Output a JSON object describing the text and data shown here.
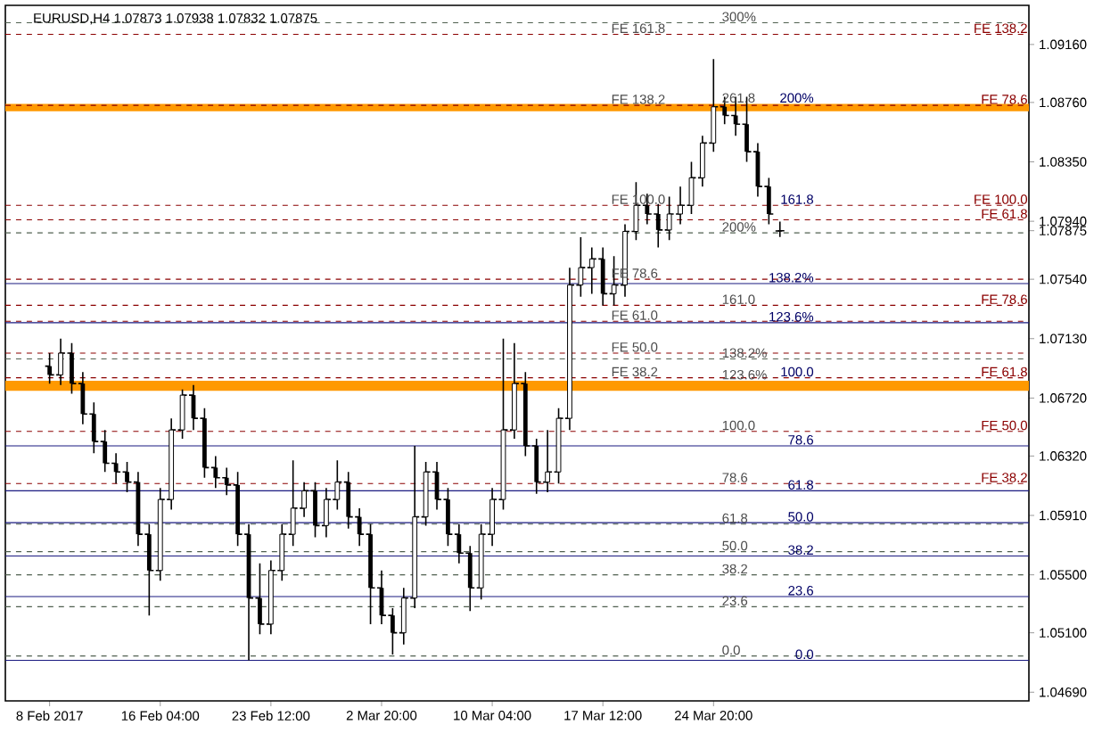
{
  "chart_data": {
    "type": "candlestick",
    "title": "EURUSD,H4  1.07873 1.07938 1.07832 1.07875",
    "color": "#000000",
    "categories": [
      "8 Feb 2017",
      null,
      null,
      null,
      null,
      null,
      null,
      null,
      null,
      null,
      "16 Feb 04:00",
      null,
      null,
      null,
      null,
      null,
      null,
      null,
      null,
      null,
      "23 Feb 12:00",
      null,
      null,
      null,
      null,
      null,
      null,
      null,
      null,
      null,
      "2 Mar 20:00",
      null,
      null,
      null,
      null,
      null,
      null,
      null,
      null,
      null,
      "10 Mar 04:00",
      null,
      null,
      null,
      null,
      null,
      null,
      null,
      null,
      null,
      "17 Mar 12:00",
      null,
      null,
      null,
      null,
      null,
      null,
      null,
      null,
      null,
      "24 Mar 20:00",
      null,
      null,
      null,
      null,
      null,
      null,
      null,
      null,
      null,
      null,
      null,
      null,
      null,
      null,
      null,
      null,
      null,
      null,
      null,
      null,
      null,
      null,
      null,
      null,
      null,
      null,
      null,
      null
    ],
    "ohlc": [
      [
        1.0694,
        1.0703,
        1.0682,
        1.0688
      ],
      [
        1.0688,
        1.0713,
        1.0681,
        1.0703
      ],
      [
        1.0703,
        1.071,
        1.0675,
        1.0682
      ],
      [
        1.0682,
        1.069,
        1.0654,
        1.0661
      ],
      [
        1.0661,
        1.0669,
        1.0634,
        1.0642
      ],
      [
        1.0642,
        1.065,
        1.0621,
        1.0627
      ],
      [
        1.0627,
        1.0634,
        1.0613,
        1.0621
      ],
      [
        1.0621,
        1.0628,
        1.0607,
        1.0614
      ],
      [
        1.0614,
        1.0621,
        1.057,
        1.0578
      ],
      [
        1.0578,
        1.0585,
        1.0522,
        1.0553
      ],
      [
        1.0553,
        1.061,
        1.0546,
        1.0602
      ],
      [
        1.0602,
        1.0658,
        1.0595,
        1.065
      ],
      [
        1.065,
        1.0678,
        1.0644,
        1.0674
      ],
      [
        1.0674,
        1.0681,
        1.065,
        1.0658
      ],
      [
        1.0658,
        1.0665,
        1.0617,
        1.0624
      ],
      [
        1.0624,
        1.0632,
        1.061,
        1.0617
      ],
      [
        1.0617,
        1.0624,
        1.0605,
        1.0612
      ],
      [
        1.0612,
        1.0621,
        1.057,
        1.0578
      ],
      [
        1.0578,
        1.0585,
        1.0491,
        1.0534
      ],
      [
        1.0534,
        1.0558,
        1.0509,
        1.0516
      ],
      [
        1.0516,
        1.056,
        1.0509,
        1.0553
      ],
      [
        1.0553,
        1.0585,
        1.0546,
        1.0578
      ],
      [
        1.0578,
        1.0629,
        1.057,
        1.0596
      ],
      [
        1.0596,
        1.0614,
        1.059,
        1.0608
      ],
      [
        1.0608,
        1.0614,
        1.0576,
        1.0584
      ],
      [
        1.0584,
        1.061,
        1.0576,
        1.0602
      ],
      [
        1.0602,
        1.0629,
        1.0595,
        1.0614
      ],
      [
        1.0614,
        1.0621,
        1.0582,
        1.059
      ],
      [
        1.059,
        1.0596,
        1.057,
        1.0578
      ],
      [
        1.0578,
        1.0585,
        1.0516,
        1.0541
      ],
      [
        1.0541,
        1.0553,
        1.0516,
        1.0522
      ],
      [
        1.0522,
        1.0527,
        1.0495,
        1.051
      ],
      [
        1.051,
        1.0541,
        1.0502,
        1.0534
      ],
      [
        1.0534,
        1.0639,
        1.0527,
        1.059
      ],
      [
        1.059,
        1.0628,
        1.0584,
        1.0621
      ],
      [
        1.0621,
        1.0628,
        1.0595,
        1.0602
      ],
      [
        1.0602,
        1.061,
        1.057,
        1.0578
      ],
      [
        1.0578,
        1.0585,
        1.0558,
        1.0565
      ],
      [
        1.0565,
        1.057,
        1.0525,
        1.0541
      ],
      [
        1.0541,
        1.0585,
        1.0533,
        1.0578
      ],
      [
        1.0578,
        1.061,
        1.057,
        1.0602
      ],
      [
        1.0602,
        1.0713,
        1.0595,
        1.065
      ],
      [
        1.065,
        1.071,
        1.0644,
        1.0682
      ],
      [
        1.0682,
        1.069,
        1.0632,
        1.0639
      ],
      [
        1.0639,
        1.0644,
        1.0606,
        1.0614
      ],
      [
        1.0614,
        1.065,
        1.0607,
        1.0621
      ],
      [
        1.0621,
        1.0665,
        1.0613,
        1.0658
      ],
      [
        1.0658,
        1.0762,
        1.065,
        1.075
      ],
      [
        1.075,
        1.0783,
        1.0742,
        1.0762
      ],
      [
        1.0762,
        1.0776,
        1.0744,
        1.0768
      ],
      [
        1.0768,
        1.0776,
        1.0736,
        1.0744
      ],
      [
        1.0744,
        1.077,
        1.0736,
        1.075
      ],
      [
        1.075,
        1.0792,
        1.0742,
        1.0787
      ],
      [
        1.0787,
        1.0821,
        1.0781,
        1.0805
      ],
      [
        1.0805,
        1.0813,
        1.0792,
        1.0799
      ],
      [
        1.0799,
        1.0806,
        1.0776,
        1.0788
      ],
      [
        1.0788,
        1.0811,
        1.0781,
        1.0799
      ],
      [
        1.0799,
        1.0818,
        1.0792,
        1.0805
      ],
      [
        1.0805,
        1.0835,
        1.0799,
        1.0824
      ],
      [
        1.0824,
        1.0853,
        1.0818,
        1.0848
      ],
      [
        1.0848,
        1.0906,
        1.0842,
        1.0873
      ],
      [
        1.0873,
        1.088,
        1.0861,
        1.0867
      ],
      [
        1.0867,
        1.088,
        1.0853,
        1.0861
      ],
      [
        1.0861,
        1.088,
        1.0835,
        1.0842
      ],
      [
        1.0842,
        1.0848,
        1.0811,
        1.0818
      ],
      [
        1.0818,
        1.0824,
        1.0792,
        1.0799
      ],
      [
        1.07873,
        1.07938,
        1.07832,
        1.07875
      ],
      null,
      null,
      null,
      null,
      null,
      null,
      null,
      null,
      null,
      null,
      null,
      null,
      null,
      null,
      null,
      null,
      null,
      null,
      null,
      null,
      null,
      null
    ],
    "ylim": [
      1.0463,
      1.0943
    ],
    "yticks": [
      {
        "value": 1.0469,
        "label": "1.04690"
      },
      {
        "value": 1.051,
        "label": "1.05100"
      },
      {
        "value": 1.055,
        "label": "1.05500"
      },
      {
        "value": 1.0591,
        "label": "1.05910"
      },
      {
        "value": 1.0632,
        "label": "1.06320"
      },
      {
        "value": 1.0672,
        "label": "1.06720"
      },
      {
        "value": 1.0713,
        "label": "1.07130"
      },
      {
        "value": 1.0754,
        "label": "1.07540"
      },
      {
        "value": 1.07875,
        "label": "1.07875"
      },
      {
        "value": 1.0794,
        "label": "1.07940"
      },
      {
        "value": 1.0835,
        "label": "1.08350"
      },
      {
        "value": 1.0876,
        "label": "1.08760"
      },
      {
        "value": 1.0916,
        "label": "1.09160"
      }
    ],
    "ref_lines": [
      {
        "axis": "y",
        "value": 1.0923,
        "label": "FE 138.2",
        "color": "#8b0000",
        "line_style": "dashed"
      },
      {
        "axis": "y",
        "value": 1.0874,
        "label": "FE 78.6",
        "color": "#8b0000",
        "line_style": "dashed"
      },
      {
        "axis": "y",
        "value": 1.0805,
        "label": "FE 100.0",
        "color": "#8b0000",
        "line_style": "dashed"
      },
      {
        "axis": "y",
        "value": 1.0795,
        "label": "FE 61.8",
        "color": "#8b0000",
        "line_style": "dashed"
      },
      {
        "axis": "y",
        "value": 1.0736,
        "label": "FE 78.6",
        "color": "#8b0000",
        "line_style": "dashed"
      },
      {
        "axis": "y",
        "value": 1.0686,
        "label": "FE 61.8",
        "color": "#8b0000",
        "line_style": "dashed"
      },
      {
        "axis": "y",
        "value": 1.0649,
        "label": "FE 50.0",
        "color": "#8b0000",
        "line_style": "dashed"
      },
      {
        "axis": "y",
        "value": 1.0613,
        "label": "FE 38.2",
        "color": "#8b0000",
        "line_style": "dashed"
      },
      {
        "axis": "y",
        "value": 1.0754,
        "color": "#8b0000",
        "line_style": "dashed"
      },
      {
        "axis": "y",
        "value": 1.0725,
        "color": "#8b0000",
        "line_style": "dashed"
      },
      {
        "axis": "y",
        "value": 1.0703,
        "color": "#8b0000",
        "line_style": "dashed"
      },
      {
        "axis": "y",
        "value": 1.0931,
        "color": "#506050",
        "line_style": "dashed"
      },
      {
        "axis": "y",
        "value": 1.0786,
        "color": "#506050",
        "line_style": "dashed"
      },
      {
        "axis": "y",
        "value": 1.0699,
        "color": "#506050",
        "line_style": "dashed"
      },
      {
        "axis": "y",
        "value": 1.0585,
        "color": "#506050",
        "line_style": "dashed"
      },
      {
        "axis": "y",
        "value": 1.0566,
        "color": "#506050",
        "line_style": "dashed"
      },
      {
        "axis": "y",
        "value": 1.055,
        "color": "#506050",
        "line_style": "dashed"
      },
      {
        "axis": "y",
        "value": 1.0528,
        "color": "#506050",
        "line_style": "dashed"
      },
      {
        "axis": "y",
        "value": 1.0494,
        "color": "#506050",
        "line_style": "dashed"
      },
      {
        "axis": "y",
        "value": 1.0751,
        "color": "#1a1a80",
        "line_style": "solid"
      },
      {
        "axis": "y",
        "value": 1.0724,
        "color": "#1a1a80",
        "line_style": "solid"
      },
      {
        "axis": "y",
        "value": 1.0639,
        "color": "#1a1a80",
        "line_style": "solid"
      },
      {
        "axis": "y",
        "value": 1.0608,
        "color": "#1a1a80",
        "line_style": "solid"
      },
      {
        "axis": "y",
        "value": 1.0586,
        "color": "#1a1a80",
        "line_style": "solid"
      },
      {
        "axis": "y",
        "value": 1.0563,
        "color": "#1a1a80",
        "line_style": "solid"
      },
      {
        "axis": "y",
        "value": 1.0535,
        "color": "#1a1a80",
        "line_style": "solid"
      },
      {
        "axis": "y",
        "value": 1.0491,
        "color": "#1a1a80",
        "line_style": "solid"
      }
    ],
    "bands": [
      {
        "axis": "y",
        "from": 1.087,
        "to": 1.0875,
        "color": "#ff9900"
      },
      {
        "axis": "y",
        "from": 1.0677,
        "to": 1.0684,
        "color": "#ff9900"
      }
    ],
    "annotations": [
      {
        "text": "FE 161.8",
        "x": "17 Mar 12:00",
        "y": 1.0923
      },
      {
        "text": "FE 138.2",
        "x": "17 Mar 12:00",
        "y": 1.0874
      },
      {
        "text": "FE 100.0",
        "x": "17 Mar 12:00",
        "y": 1.0805
      },
      {
        "text": "FE 78.6",
        "x": "17 Mar 12:00",
        "y": 1.0754
      },
      {
        "text": "FE 61.0",
        "x": "17 Mar 12:00",
        "y": 1.0725
      },
      {
        "text": "FE 50.0",
        "x": "17 Mar 12:00",
        "y": 1.0703
      },
      {
        "text": "FE 38.2",
        "x": "17 Mar 12:00",
        "y": 1.0686
      },
      {
        "text": "300%",
        "x": "24 Mar 20:00",
        "y": 1.0931
      },
      {
        "text": "261.8",
        "x": "24 Mar 20:00",
        "y": 1.0875
      },
      {
        "text": "200%",
        "x": "24 Mar 20:00",
        "y": 1.0786
      },
      {
        "text": "161.0",
        "x": "24 Mar 20:00",
        "y": 1.0736
      },
      {
        "text": "138.2%",
        "x": "24 Mar 20:00",
        "y": 1.0699
      },
      {
        "text": "123.6%",
        "x": "24 Mar 20:00",
        "y": 1.0684
      },
      {
        "text": "100.0",
        "x": "24 Mar 20:00",
        "y": 1.0649
      },
      {
        "text": "78.6",
        "x": "24 Mar 20:00",
        "y": 1.0613
      },
      {
        "text": "61.8",
        "x": "24 Mar 20:00",
        "y": 1.0585
      },
      {
        "text": "50.0",
        "x": "24 Mar 20:00",
        "y": 1.0566
      },
      {
        "text": "38.2",
        "x": "24 Mar 20:00",
        "y": 1.055
      },
      {
        "text": "23.6",
        "x": "24 Mar 20:00",
        "y": 1.0528
      },
      {
        "text": "0.0",
        "x": "24 Mar 20:00",
        "y": 1.0494
      },
      {
        "text": "200%",
        "y": 1.0875
      },
      {
        "text": "161.8",
        "y": 1.0805
      },
      {
        "text": "138.2%",
        "y": 1.0751
      },
      {
        "text": "123.6%",
        "y": 1.0724
      },
      {
        "text": "100.0",
        "y": 1.0686
      },
      {
        "text": "78.6",
        "y": 1.0639
      },
      {
        "text": "61.8",
        "y": 1.0608
      },
      {
        "text": "50.0",
        "y": 1.0586
      },
      {
        "text": "38.2",
        "y": 1.0563
      },
      {
        "text": "23.6",
        "y": 1.0535
      },
      {
        "text": "0.0",
        "y": 1.0491
      }
    ]
  }
}
